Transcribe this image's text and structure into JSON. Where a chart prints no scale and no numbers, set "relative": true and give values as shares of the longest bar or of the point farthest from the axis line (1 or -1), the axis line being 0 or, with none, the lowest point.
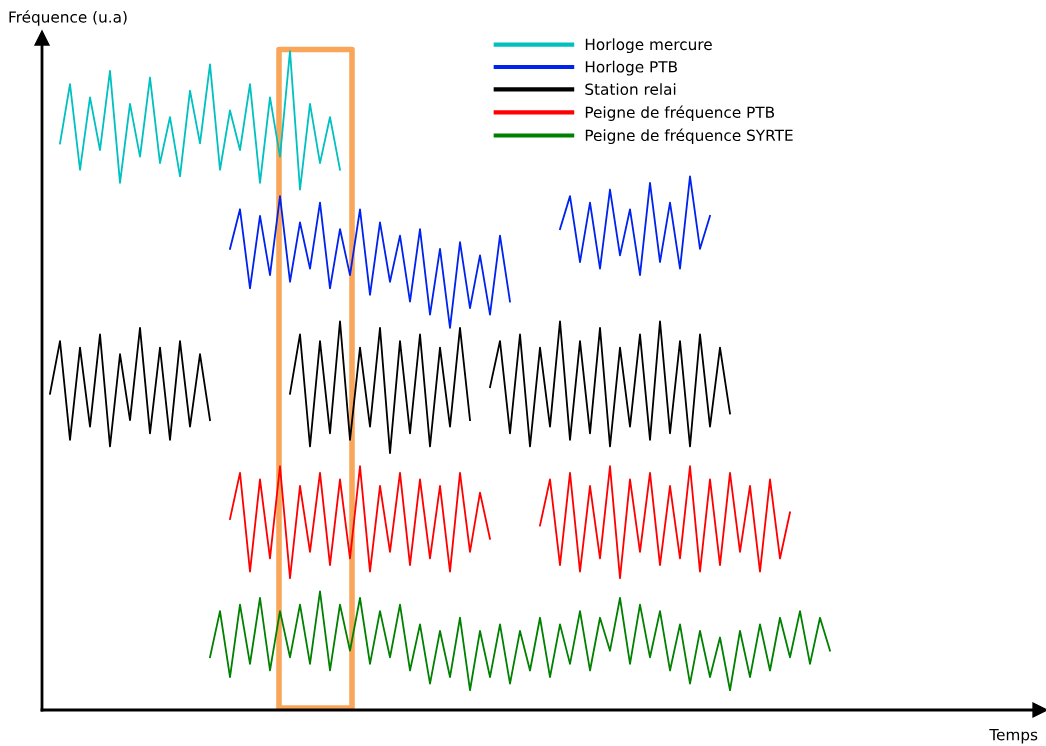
{
  "chart_data": {
    "type": "line",
    "relative": true,
    "annotations": [
      "Temps"
    ],
    "ylabel": "Fréquence (u.a)",
    "legend": "top right",
    "categories": [
      null,
      null,
      null,
      null,
      null,
      null,
      null,
      null,
      null,
      null,
      null,
      null,
      null,
      null,
      null,
      null,
      null,
      null,
      null,
      null,
      null,
      null,
      null,
      null,
      null,
      null,
      null,
      null,
      null,
      null,
      null,
      null,
      null,
      null,
      null,
      null,
      null,
      null,
      null,
      null,
      null,
      null,
      null,
      null,
      null,
      null,
      null,
      null,
      null,
      null,
      null,
      null,
      null,
      null,
      null,
      null,
      null,
      null,
      null,
      null,
      null,
      null,
      null,
      null,
      null,
      null,
      null,
      null,
      null,
      null,
      null,
      null,
      null,
      null,
      null,
      null,
      null,
      null,
      null
    ],
    "series": [
      {
        "name": "Horloge mercure",
        "color": "#00c0c0",
        "values": [
          null,
          0.86,
          0.95,
          0.82,
          0.93,
          0.85,
          0.97,
          0.8,
          0.92,
          0.84,
          0.96,
          0.83,
          0.9,
          0.81,
          0.94,
          0.86,
          0.98,
          0.82,
          0.91,
          0.85,
          0.95,
          0.8,
          0.93,
          0.84,
          1.0,
          0.79,
          0.92,
          0.83,
          0.9,
          0.82,
          null,
          null,
          null,
          null,
          null,
          null,
          null,
          null,
          null,
          null,
          null,
          null,
          null,
          null,
          null,
          null,
          null,
          null,
          null,
          null,
          null,
          null,
          null,
          null,
          null,
          null,
          null,
          null,
          null,
          null,
          null,
          null,
          null,
          null,
          null,
          null,
          null,
          null,
          null,
          null,
          null,
          null,
          null,
          null,
          null,
          null,
          null,
          null,
          null
        ]
      },
      {
        "name": "Horloge PTB",
        "color": "#0022ee",
        "values": [
          null,
          null,
          null,
          null,
          null,
          null,
          null,
          null,
          null,
          null,
          null,
          null,
          null,
          null,
          null,
          null,
          null,
          null,
          0.7,
          0.76,
          0.64,
          0.75,
          0.66,
          0.78,
          0.65,
          0.74,
          0.67,
          0.77,
          0.64,
          0.73,
          0.66,
          0.76,
          0.63,
          0.74,
          0.65,
          0.72,
          0.62,
          0.73,
          0.6,
          0.7,
          0.58,
          0.71,
          0.61,
          0.69,
          0.6,
          0.72,
          0.62,
          null,
          null,
          null,
          null,
          0.73,
          0.78,
          0.68,
          0.77,
          0.67,
          0.79,
          0.69,
          0.76,
          0.66,
          0.8,
          0.68,
          0.77,
          0.67,
          0.81,
          0.7,
          0.75,
          null,
          null,
          null,
          null,
          null,
          null,
          null,
          null,
          null,
          null,
          null,
          null
        ]
      },
      {
        "name": "Station relai",
        "color": "#000000",
        "values": [
          0.48,
          0.56,
          0.41,
          0.55,
          0.43,
          0.57,
          0.4,
          0.54,
          0.44,
          0.58,
          0.42,
          0.55,
          0.41,
          0.56,
          0.43,
          0.54,
          0.44,
          null,
          null,
          null,
          null,
          null,
          null,
          null,
          0.48,
          0.57,
          0.4,
          0.56,
          0.42,
          0.59,
          0.41,
          0.55,
          0.43,
          0.58,
          0.39,
          0.56,
          0.42,
          0.57,
          0.4,
          0.55,
          0.43,
          0.58,
          0.44,
          null,
          0.49,
          0.56,
          0.42,
          0.57,
          0.4,
          0.55,
          0.43,
          0.59,
          0.41,
          0.56,
          0.42,
          0.58,
          0.4,
          0.55,
          0.43,
          0.57,
          0.41,
          0.59,
          0.42,
          0.56,
          0.4,
          0.57,
          0.43,
          0.55,
          0.45,
          null,
          null,
          null,
          null,
          null,
          null,
          null,
          null,
          null,
          null
        ]
      },
      {
        "name": "Peigne de fréquence PTB",
        "color": "#ff0000",
        "values": [
          null,
          null,
          null,
          null,
          null,
          null,
          null,
          null,
          null,
          null,
          null,
          null,
          null,
          null,
          null,
          null,
          null,
          null,
          0.29,
          0.36,
          0.21,
          0.35,
          0.23,
          0.37,
          0.2,
          0.34,
          0.24,
          0.36,
          0.22,
          0.35,
          0.23,
          0.37,
          0.21,
          0.34,
          0.24,
          0.36,
          0.22,
          0.35,
          0.23,
          0.34,
          0.21,
          0.36,
          0.24,
          0.33,
          0.26,
          null,
          null,
          null,
          null,
          0.28,
          0.35,
          0.22,
          0.36,
          0.21,
          0.34,
          0.23,
          0.37,
          0.2,
          0.35,
          0.24,
          0.36,
          0.22,
          0.34,
          0.23,
          0.37,
          0.21,
          0.35,
          0.22,
          0.36,
          0.24,
          0.34,
          0.21,
          0.35,
          0.23,
          0.3,
          null,
          null,
          null,
          null
        ]
      },
      {
        "name": "Peigne de fréquence SYRTE",
        "color": "#008000",
        "values": [
          null,
          null,
          null,
          null,
          null,
          null,
          null,
          null,
          null,
          null,
          null,
          null,
          null,
          null,
          null,
          null,
          0.08,
          0.15,
          0.05,
          0.16,
          0.07,
          0.17,
          0.06,
          0.15,
          0.08,
          0.16,
          0.07,
          0.18,
          0.06,
          0.16,
          0.09,
          0.17,
          0.07,
          0.15,
          0.08,
          0.16,
          0.06,
          0.13,
          0.04,
          0.12,
          0.05,
          0.14,
          0.03,
          0.12,
          0.05,
          0.13,
          0.04,
          0.12,
          0.06,
          0.14,
          0.05,
          0.13,
          0.07,
          0.15,
          0.06,
          0.14,
          0.09,
          0.17,
          0.07,
          0.16,
          0.08,
          0.15,
          0.06,
          0.13,
          0.04,
          0.12,
          0.05,
          0.11,
          0.03,
          0.12,
          0.05,
          0.13,
          0.06,
          0.14,
          0.08,
          0.15,
          0.07,
          0.14,
          0.09
        ]
      }
    ]
  }
}
